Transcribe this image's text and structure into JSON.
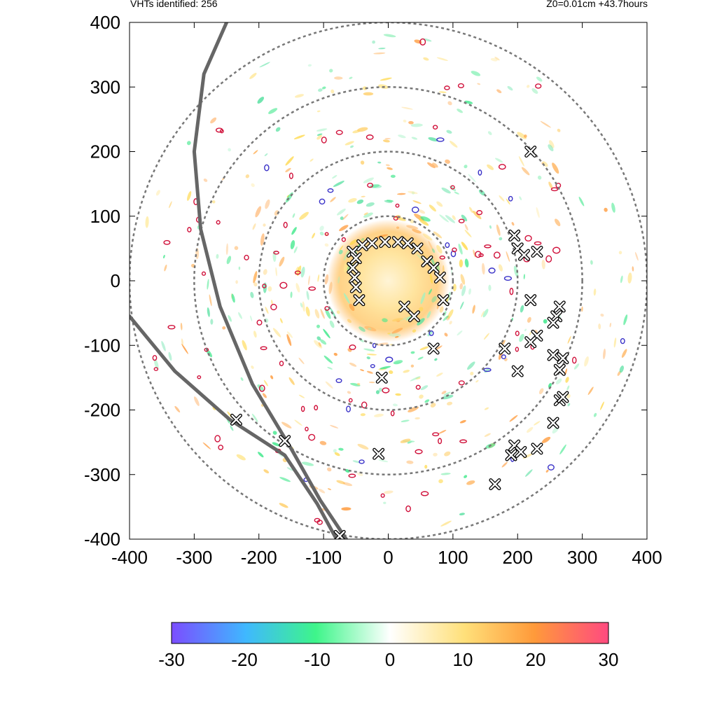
{
  "header": {
    "left": "VHTs identified: 256",
    "right": "Z0=0.01cm  +43.7hours"
  },
  "chart_data": {
    "type": "heatmap",
    "title": "",
    "xlabel": "",
    "ylabel": "",
    "xlim": [
      -400,
      400
    ],
    "ylim": [
      -400,
      400
    ],
    "x_ticks": [
      "-400",
      "-300",
      "-200",
      "-100",
      "0",
      "100",
      "200",
      "300",
      "400"
    ],
    "y_ticks": [
      "400",
      "300",
      "200",
      "100",
      "0",
      "-100",
      "-200",
      "-300",
      "-400"
    ],
    "range_rings_km": [
      100,
      200,
      300,
      400
    ],
    "colorbar": {
      "range": [
        -30,
        30
      ],
      "ticks": [
        "-30",
        "-20",
        "-10",
        "0",
        "10",
        "20",
        "30"
      ],
      "colors": [
        "#7b4dff",
        "#3fd0f0",
        "#3ef58a",
        "#ffffff",
        "#ffd84a",
        "#ff8a3a",
        "#ff4a80"
      ]
    },
    "vht_markers": [
      [
        -55,
        45
      ],
      [
        -50,
        35
      ],
      [
        -55,
        20
      ],
      [
        -52,
        5
      ],
      [
        -50,
        -10
      ],
      [
        -45,
        -30
      ],
      [
        -40,
        55
      ],
      [
        -25,
        58
      ],
      [
        -5,
        60
      ],
      [
        15,
        60
      ],
      [
        30,
        58
      ],
      [
        45,
        50
      ],
      [
        60,
        30
      ],
      [
        70,
        20
      ],
      [
        80,
        5
      ],
      [
        85,
        -30
      ],
      [
        25,
        -40
      ],
      [
        40,
        -55
      ],
      [
        70,
        -105
      ],
      [
        -10,
        -150
      ],
      [
        -15,
        -268
      ],
      [
        -235,
        -215
      ],
      [
        -160,
        -248
      ],
      [
        -75,
        -395
      ],
      [
        195,
        70
      ],
      [
        200,
        50
      ],
      [
        230,
        45
      ],
      [
        210,
        40
      ],
      [
        220,
        -30
      ],
      [
        265,
        -40
      ],
      [
        260,
        -55
      ],
      [
        255,
        -65
      ],
      [
        230,
        -85
      ],
      [
        220,
        -95
      ],
      [
        180,
        -105
      ],
      [
        200,
        -140
      ],
      [
        255,
        -115
      ],
      [
        270,
        -120
      ],
      [
        265,
        -138
      ],
      [
        265,
        -185
      ],
      [
        270,
        -180
      ],
      [
        255,
        -220
      ],
      [
        195,
        -255
      ],
      [
        190,
        -270
      ],
      [
        205,
        -265
      ],
      [
        230,
        -260
      ],
      [
        165,
        -315
      ],
      [
        220,
        200
      ]
    ],
    "tracks": [
      [
        [
          -250,
          400
        ],
        [
          -285,
          320
        ],
        [
          -300,
          200
        ],
        [
          -290,
          80
        ],
        [
          -260,
          -40
        ],
        [
          -210,
          -160
        ],
        [
          -150,
          -260
        ],
        [
          -105,
          -340
        ],
        [
          -65,
          -400
        ]
      ],
      [
        [
          -400,
          -55
        ],
        [
          -330,
          -140
        ],
        [
          -245,
          -215
        ],
        [
          -160,
          -270
        ],
        [
          -110,
          -345
        ],
        [
          -80,
          -400
        ]
      ]
    ]
  }
}
